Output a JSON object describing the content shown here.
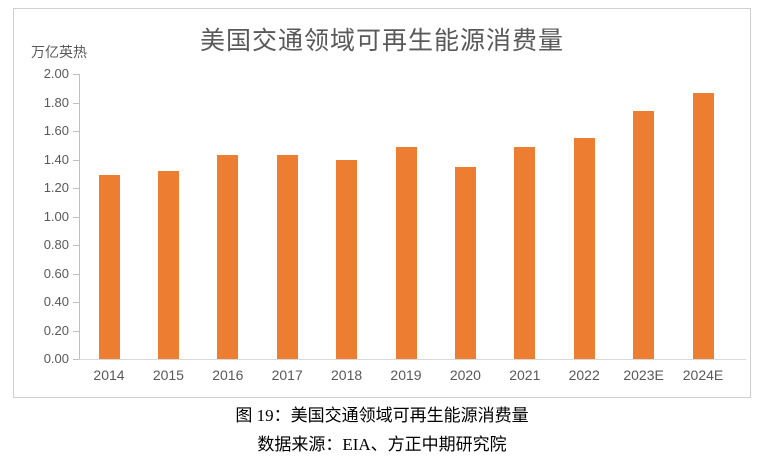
{
  "chart_data": {
    "type": "bar",
    "title": "美国交通领域可再生能源消费量",
    "categories": [
      "2014",
      "2015",
      "2016",
      "2017",
      "2018",
      "2019",
      "2020",
      "2021",
      "2022",
      "2023E",
      "2024E"
    ],
    "values": [
      1.29,
      1.32,
      1.43,
      1.43,
      1.4,
      1.49,
      1.35,
      1.49,
      1.55,
      1.74,
      1.87
    ],
    "xlabel": "",
    "ylabel": "万亿英热",
    "ylim": [
      0.0,
      2.0
    ],
    "ytick_step": 0.2,
    "grid": false,
    "legend": false,
    "bar_color": "#ED7D31"
  },
  "caption": {
    "line1": "图 19：美国交通领域可再生能源消费量",
    "line2": "数据来源：EIA、方正中期研究院"
  },
  "colors": {
    "bar": "#ED7D31",
    "axis_text": "#595959",
    "axis_line": "#BFBFBF",
    "baseline": "#D9D9D9",
    "frame_border": "#CFCFCF"
  }
}
